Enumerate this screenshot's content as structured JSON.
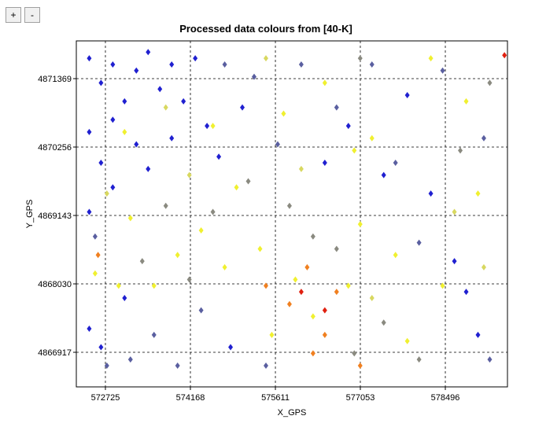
{
  "controls": {
    "zoom_in": "+",
    "zoom_out": "-"
  },
  "chart_data": {
    "type": "scatter",
    "title": "Processed data  colours from [40-K]",
    "x_label": "X_GPS",
    "y_label": "Y_GPS",
    "xlim": [
      572231,
      579551
    ],
    "ylim": [
      4866354,
      4871983
    ],
    "xticks": [
      572725,
      574168,
      575611,
      577053,
      578496
    ],
    "yticks": [
      4866917,
      4868030,
      4869143,
      4870256,
      4871369
    ],
    "grid": true,
    "series": [
      {
        "color": "#2020d0",
        "x": [
          572450,
          572450,
          572450,
          572450,
          572650,
          572650,
          572650,
          572850,
          572850,
          572850,
          573050,
          573050,
          573250,
          573250,
          573450,
          573450,
          573650,
          573850,
          573850,
          574050,
          574250,
          574450,
          574650,
          575050,
          576450,
          576850,
          577450,
          577850,
          578250,
          578650,
          578850,
          579050,
          574850
        ],
        "y": [
          4871700,
          4870500,
          4869200,
          4867300,
          4871300,
          4870000,
          4867000,
          4871600,
          4870700,
          4869600,
          4871000,
          4867800,
          4871500,
          4870300,
          4871800,
          4869900,
          4871200,
          4871600,
          4870400,
          4871000,
          4871700,
          4870600,
          4870100,
          4870900,
          4870000,
          4870600,
          4869800,
          4871100,
          4869500,
          4868400,
          4867900,
          4867200,
          4867000
        ]
      },
      {
        "color": "#5a5fa0",
        "x": [
          572550,
          572750,
          573150,
          573550,
          573950,
          574350,
          574750,
          575250,
          575650,
          576050,
          576650,
          577250,
          577650,
          578050,
          578450,
          579150,
          579250,
          575450
        ],
        "y": [
          4868800,
          4866700,
          4866800,
          4867200,
          4866700,
          4867600,
          4871600,
          4871400,
          4870300,
          4871600,
          4870900,
          4871600,
          4870000,
          4868700,
          4871500,
          4870400,
          4866800,
          4866700
        ]
      },
      {
        "color": "#8a8a80",
        "x": [
          573350,
          574150,
          574550,
          575150,
          575850,
          576250,
          576650,
          577050,
          577450,
          578050,
          578750,
          579250,
          576950,
          573750
        ],
        "y": [
          4868400,
          4868100,
          4869200,
          4869700,
          4869300,
          4868800,
          4868600,
          4871700,
          4867400,
          4866800,
          4870200,
          4871300,
          4866900,
          4869300
        ]
      },
      {
        "color": "#f0f030",
        "x": [
          572550,
          572950,
          573150,
          573550,
          573950,
          574350,
          574750,
          574950,
          575350,
          575750,
          575950,
          576250,
          576450,
          576850,
          577050,
          577250,
          577650,
          577850,
          578250,
          578450,
          578850,
          579050,
          574550,
          573050,
          575550,
          576950
        ],
        "y": [
          4868200,
          4868000,
          4869100,
          4868000,
          4868500,
          4868900,
          4868300,
          4869600,
          4868600,
          4870800,
          4868100,
          4867500,
          4871300,
          4868000,
          4869000,
          4870400,
          4868500,
          4867100,
          4871700,
          4868000,
          4871000,
          4869500,
          4870600,
          4870500,
          4867200,
          4870200
        ]
      },
      {
        "color": "#d8d860",
        "x": [
          572750,
          573750,
          574150,
          575450,
          576050,
          577250,
          578650,
          579150
        ],
        "y": [
          4869500,
          4870900,
          4869800,
          4871700,
          4869900,
          4867800,
          4869200,
          4868300
        ]
      },
      {
        "color": "#f08020",
        "x": [
          575450,
          575850,
          576150,
          576450,
          576650,
          577050,
          572600,
          576250
        ],
        "y": [
          4868000,
          4867700,
          4868300,
          4867200,
          4867900,
          4866700,
          4868500,
          4866900
        ]
      },
      {
        "color": "#e02010",
        "x": [
          576050,
          576450,
          579500
        ],
        "y": [
          4867900,
          4867600,
          4871750
        ]
      }
    ]
  }
}
